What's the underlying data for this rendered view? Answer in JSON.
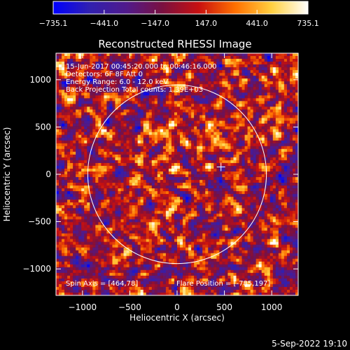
{
  "chart_data": {
    "type": "heatmap",
    "title": "Reconstructed RHESSI Image",
    "xlabel": "Heliocentric X (arcsec)",
    "ylabel": "Heliocentric Y (arcsec)",
    "xlim": [
      -1280,
      1280
    ],
    "ylim": [
      -1280,
      1280
    ],
    "x_ticks": [
      -1000,
      -500,
      0,
      500,
      1000
    ],
    "y_ticks": [
      -1000,
      -500,
      0,
      500,
      1000
    ],
    "x_tick_labels": [
      "−1000",
      "−500",
      "0",
      "500",
      "1000"
    ],
    "y_tick_labels": [
      "−1000",
      "−500",
      "0",
      "500",
      "1000"
    ],
    "colorbar": {
      "min": -735.1,
      "max": 735.1,
      "ticks": [
        -735.1,
        -441.0,
        -147.0,
        147.0,
        441.0,
        735.1
      ],
      "tick_labels": [
        "−735.1",
        "−441.0",
        "−147.0",
        "147.0",
        "441.0",
        "735.1"
      ],
      "colors": [
        "#0000ff",
        "#3020b0",
        "#501a8c",
        "#7a1040",
        "#c81010",
        "#ff7000",
        "#ffd040",
        "#ffffff"
      ]
    },
    "annotations": [
      "15-Jun-2017 00:45:20.000 to 00:46:16.000",
      "Detectors: 6F 8F  Att 0",
      "Energy Range: 6.0 - 12.0 keV",
      "Back Projection     Total counts: 1.39E+03"
    ],
    "solar_disk_radius": 944,
    "spin_axis": [
      464,
      78
    ],
    "spin_axis_label": "Spin Axis = [464,78]",
    "flare_position": [
      -785,
      197
    ],
    "flare_position_label": "Flare Position = [-785,197]"
  },
  "footer": {
    "date": "5-Sep-2022 19:10"
  }
}
